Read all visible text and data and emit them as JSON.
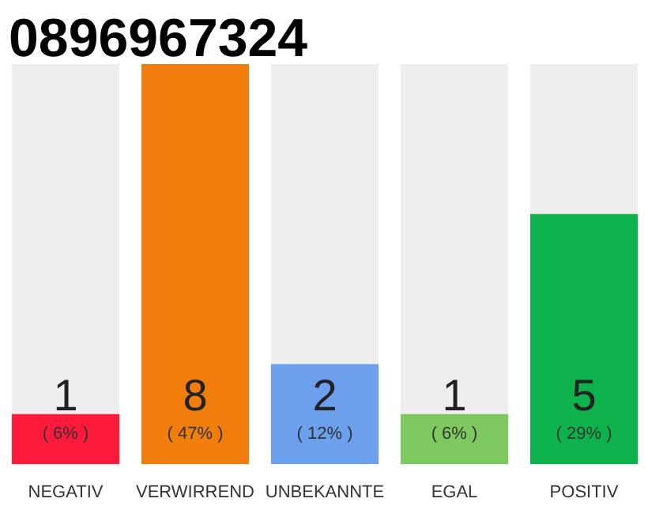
{
  "chart_data": {
    "type": "bar",
    "title": "0896967324",
    "categories": [
      "NEGATIV",
      "VERWIRREND",
      "UNBEKANNTE",
      "EGAL",
      "POSITIV"
    ],
    "values": [
      1,
      8,
      2,
      1,
      5
    ],
    "colors": [
      "#fe1a3a",
      "#f07d0c",
      "#6c9fec",
      "#7dc95f",
      "#0db24c"
    ],
    "data_labels": true,
    "annotations": [
      "( 6% )",
      "( 47% )",
      "( 12% )",
      "( 6% )",
      "( 29% )"
    ],
    "grid": false
  }
}
